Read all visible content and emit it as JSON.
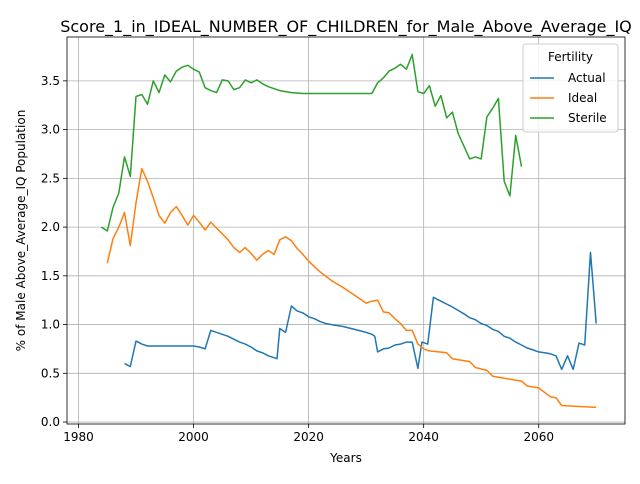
{
  "chart_data": {
    "type": "line",
    "title": "Score_1_in_IDEAL_NUMBER_OF_CHILDREN_for_Male_Above_Average_IQ",
    "xlabel": "Years",
    "ylabel": "% of Male Above_Average_IQ Population",
    "xlim": [
      1978,
      2075
    ],
    "ylim": [
      -0.02,
      3.95
    ],
    "xticks": [
      1980,
      2000,
      2020,
      2040,
      2060
    ],
    "xtick_labels": [
      "1980",
      "2000",
      "2020",
      "2040",
      "2060"
    ],
    "yticks": [
      0.0,
      0.5,
      1.0,
      1.5,
      2.0,
      2.5,
      3.0,
      3.5
    ],
    "ytick_labels": [
      "0.0",
      "0.5",
      "1.0",
      "1.5",
      "2.0",
      "2.5",
      "3.0",
      "3.5"
    ],
    "grid": true,
    "legend": {
      "title": "Fertility",
      "position": "upper right"
    },
    "series": [
      {
        "name": "Actual",
        "color": "#1f77b4",
        "points": [
          [
            1988,
            0.6
          ],
          [
            1989,
            0.57
          ],
          [
            1990,
            0.83
          ],
          [
            1991,
            0.8
          ],
          [
            1992,
            0.78
          ],
          [
            1995,
            0.78
          ],
          [
            2000,
            0.78
          ],
          [
            2001,
            0.77
          ],
          [
            2002,
            0.75
          ],
          [
            2003,
            0.94
          ],
          [
            2004,
            0.92
          ],
          [
            2005,
            0.9
          ],
          [
            2006,
            0.88
          ],
          [
            2007,
            0.85
          ],
          [
            2008,
            0.82
          ],
          [
            2009,
            0.8
          ],
          [
            2010,
            0.77
          ],
          [
            2011,
            0.73
          ],
          [
            2012,
            0.71
          ],
          [
            2013,
            0.68
          ],
          [
            2014,
            0.66
          ],
          [
            2014.5,
            0.65
          ],
          [
            2015,
            0.96
          ],
          [
            2016,
            0.92
          ],
          [
            2017,
            1.19
          ],
          [
            2018,
            1.14
          ],
          [
            2019,
            1.12
          ],
          [
            2020,
            1.08
          ],
          [
            2021,
            1.06
          ],
          [
            2022,
            1.03
          ],
          [
            2023,
            1.01
          ],
          [
            2024,
            1.0
          ],
          [
            2026,
            0.98
          ],
          [
            2028,
            0.95
          ],
          [
            2030,
            0.92
          ],
          [
            2031,
            0.9
          ],
          [
            2031.5,
            0.88
          ],
          [
            2032,
            0.72
          ],
          [
            2033,
            0.75
          ],
          [
            2034,
            0.76
          ],
          [
            2035,
            0.79
          ],
          [
            2036,
            0.8
          ],
          [
            2037,
            0.82
          ],
          [
            2038,
            0.82
          ],
          [
            2039,
            0.55
          ],
          [
            2039.7,
            0.82
          ],
          [
            2040.7,
            0.8
          ],
          [
            2041.7,
            1.28
          ],
          [
            2043,
            1.24
          ],
          [
            2045,
            1.18
          ],
          [
            2047,
            1.11
          ],
          [
            2048,
            1.07
          ],
          [
            2049,
            1.05
          ],
          [
            2050,
            1.01
          ],
          [
            2051,
            0.99
          ],
          [
            2052,
            0.95
          ],
          [
            2053,
            0.93
          ],
          [
            2054,
            0.88
          ],
          [
            2055,
            0.86
          ],
          [
            2056,
            0.82
          ],
          [
            2057,
            0.79
          ],
          [
            2058,
            0.76
          ],
          [
            2059,
            0.74
          ],
          [
            2060,
            0.72
          ],
          [
            2061,
            0.71
          ],
          [
            2062,
            0.7
          ],
          [
            2063,
            0.68
          ],
          [
            2064,
            0.54
          ],
          [
            2065,
            0.68
          ],
          [
            2066,
            0.54
          ],
          [
            2067,
            0.81
          ],
          [
            2068,
            0.79
          ],
          [
            2069,
            1.74
          ],
          [
            2070,
            1.01
          ]
        ]
      },
      {
        "name": "Ideal",
        "color": "#ff7f0e",
        "points": [
          [
            1985,
            1.63
          ],
          [
            1986,
            1.88
          ],
          [
            1987,
            2.0
          ],
          [
            1988,
            2.15
          ],
          [
            1989,
            1.81
          ],
          [
            1990,
            2.25
          ],
          [
            1991,
            2.6
          ],
          [
            1992,
            2.47
          ],
          [
            1993,
            2.3
          ],
          [
            1994,
            2.12
          ],
          [
            1995,
            2.04
          ],
          [
            1996,
            2.15
          ],
          [
            1997,
            2.21
          ],
          [
            1998,
            2.12
          ],
          [
            1999,
            2.02
          ],
          [
            2000,
            2.12
          ],
          [
            2001,
            2.05
          ],
          [
            2002,
            1.97
          ],
          [
            2003,
            2.05
          ],
          [
            2004,
            1.99
          ],
          [
            2005,
            1.93
          ],
          [
            2006,
            1.87
          ],
          [
            2007,
            1.79
          ],
          [
            2008,
            1.74
          ],
          [
            2009,
            1.79
          ],
          [
            2010,
            1.73
          ],
          [
            2011,
            1.66
          ],
          [
            2012,
            1.72
          ],
          [
            2013,
            1.76
          ],
          [
            2014,
            1.72
          ],
          [
            2015,
            1.87
          ],
          [
            2016,
            1.9
          ],
          [
            2017,
            1.86
          ],
          [
            2018,
            1.78
          ],
          [
            2019,
            1.72
          ],
          [
            2020,
            1.65
          ],
          [
            2022,
            1.54
          ],
          [
            2024,
            1.45
          ],
          [
            2026,
            1.38
          ],
          [
            2028,
            1.3
          ],
          [
            2030,
            1.22
          ],
          [
            2031,
            1.24
          ],
          [
            2032,
            1.25
          ],
          [
            2033,
            1.13
          ],
          [
            2034,
            1.12
          ],
          [
            2035,
            1.06
          ],
          [
            2036,
            1.01
          ],
          [
            2037,
            0.94
          ],
          [
            2038,
            0.94
          ],
          [
            2039,
            0.8
          ],
          [
            2040,
            0.75
          ],
          [
            2041,
            0.73
          ],
          [
            2044,
            0.71
          ],
          [
            2045,
            0.65
          ],
          [
            2048,
            0.62
          ],
          [
            2049,
            0.56
          ],
          [
            2051,
            0.53
          ],
          [
            2052,
            0.47
          ],
          [
            2054,
            0.45
          ],
          [
            2057,
            0.42
          ],
          [
            2058,
            0.37
          ],
          [
            2060,
            0.35
          ],
          [
            2062,
            0.26
          ],
          [
            2063,
            0.25
          ],
          [
            2064,
            0.17
          ],
          [
            2070,
            0.15
          ]
        ]
      },
      {
        "name": "Sterile",
        "color": "#2ca02c",
        "points": [
          [
            1984,
            2.0
          ],
          [
            1985,
            1.96
          ],
          [
            1986,
            2.2
          ],
          [
            1987,
            2.35
          ],
          [
            1988,
            2.72
          ],
          [
            1989,
            2.52
          ],
          [
            1990,
            3.34
          ],
          [
            1991,
            3.36
          ],
          [
            1992,
            3.26
          ],
          [
            1993,
            3.5
          ],
          [
            1994,
            3.38
          ],
          [
            1995,
            3.56
          ],
          [
            1996,
            3.49
          ],
          [
            1997,
            3.6
          ],
          [
            1998,
            3.64
          ],
          [
            1999,
            3.66
          ],
          [
            2000,
            3.62
          ],
          [
            2001,
            3.59
          ],
          [
            2002,
            3.43
          ],
          [
            2003,
            3.4
          ],
          [
            2004,
            3.38
          ],
          [
            2005,
            3.51
          ],
          [
            2006,
            3.5
          ],
          [
            2007,
            3.41
          ],
          [
            2008,
            3.43
          ],
          [
            2009,
            3.51
          ],
          [
            2010,
            3.48
          ],
          [
            2011,
            3.51
          ],
          [
            2012,
            3.47
          ],
          [
            2013,
            3.44
          ],
          [
            2015,
            3.4
          ],
          [
            2016,
            3.39
          ],
          [
            2017,
            3.38
          ],
          [
            2019,
            3.37
          ],
          [
            2031,
            3.37
          ],
          [
            2032,
            3.48
          ],
          [
            2033,
            3.53
          ],
          [
            2034,
            3.6
          ],
          [
            2035,
            3.63
          ],
          [
            2036,
            3.67
          ],
          [
            2037,
            3.62
          ],
          [
            2038,
            3.77
          ],
          [
            2039,
            3.39
          ],
          [
            2040,
            3.37
          ],
          [
            2041,
            3.45
          ],
          [
            2042,
            3.24
          ],
          [
            2043,
            3.35
          ],
          [
            2044,
            3.12
          ],
          [
            2045,
            3.18
          ],
          [
            2046,
            2.96
          ],
          [
            2048,
            2.7
          ],
          [
            2049,
            2.72
          ],
          [
            2050,
            2.7
          ],
          [
            2051,
            3.13
          ],
          [
            2052,
            3.22
          ],
          [
            2053,
            3.32
          ],
          [
            2054,
            2.47
          ],
          [
            2055,
            2.32
          ],
          [
            2056,
            2.94
          ],
          [
            2057,
            2.62
          ]
        ]
      }
    ]
  }
}
